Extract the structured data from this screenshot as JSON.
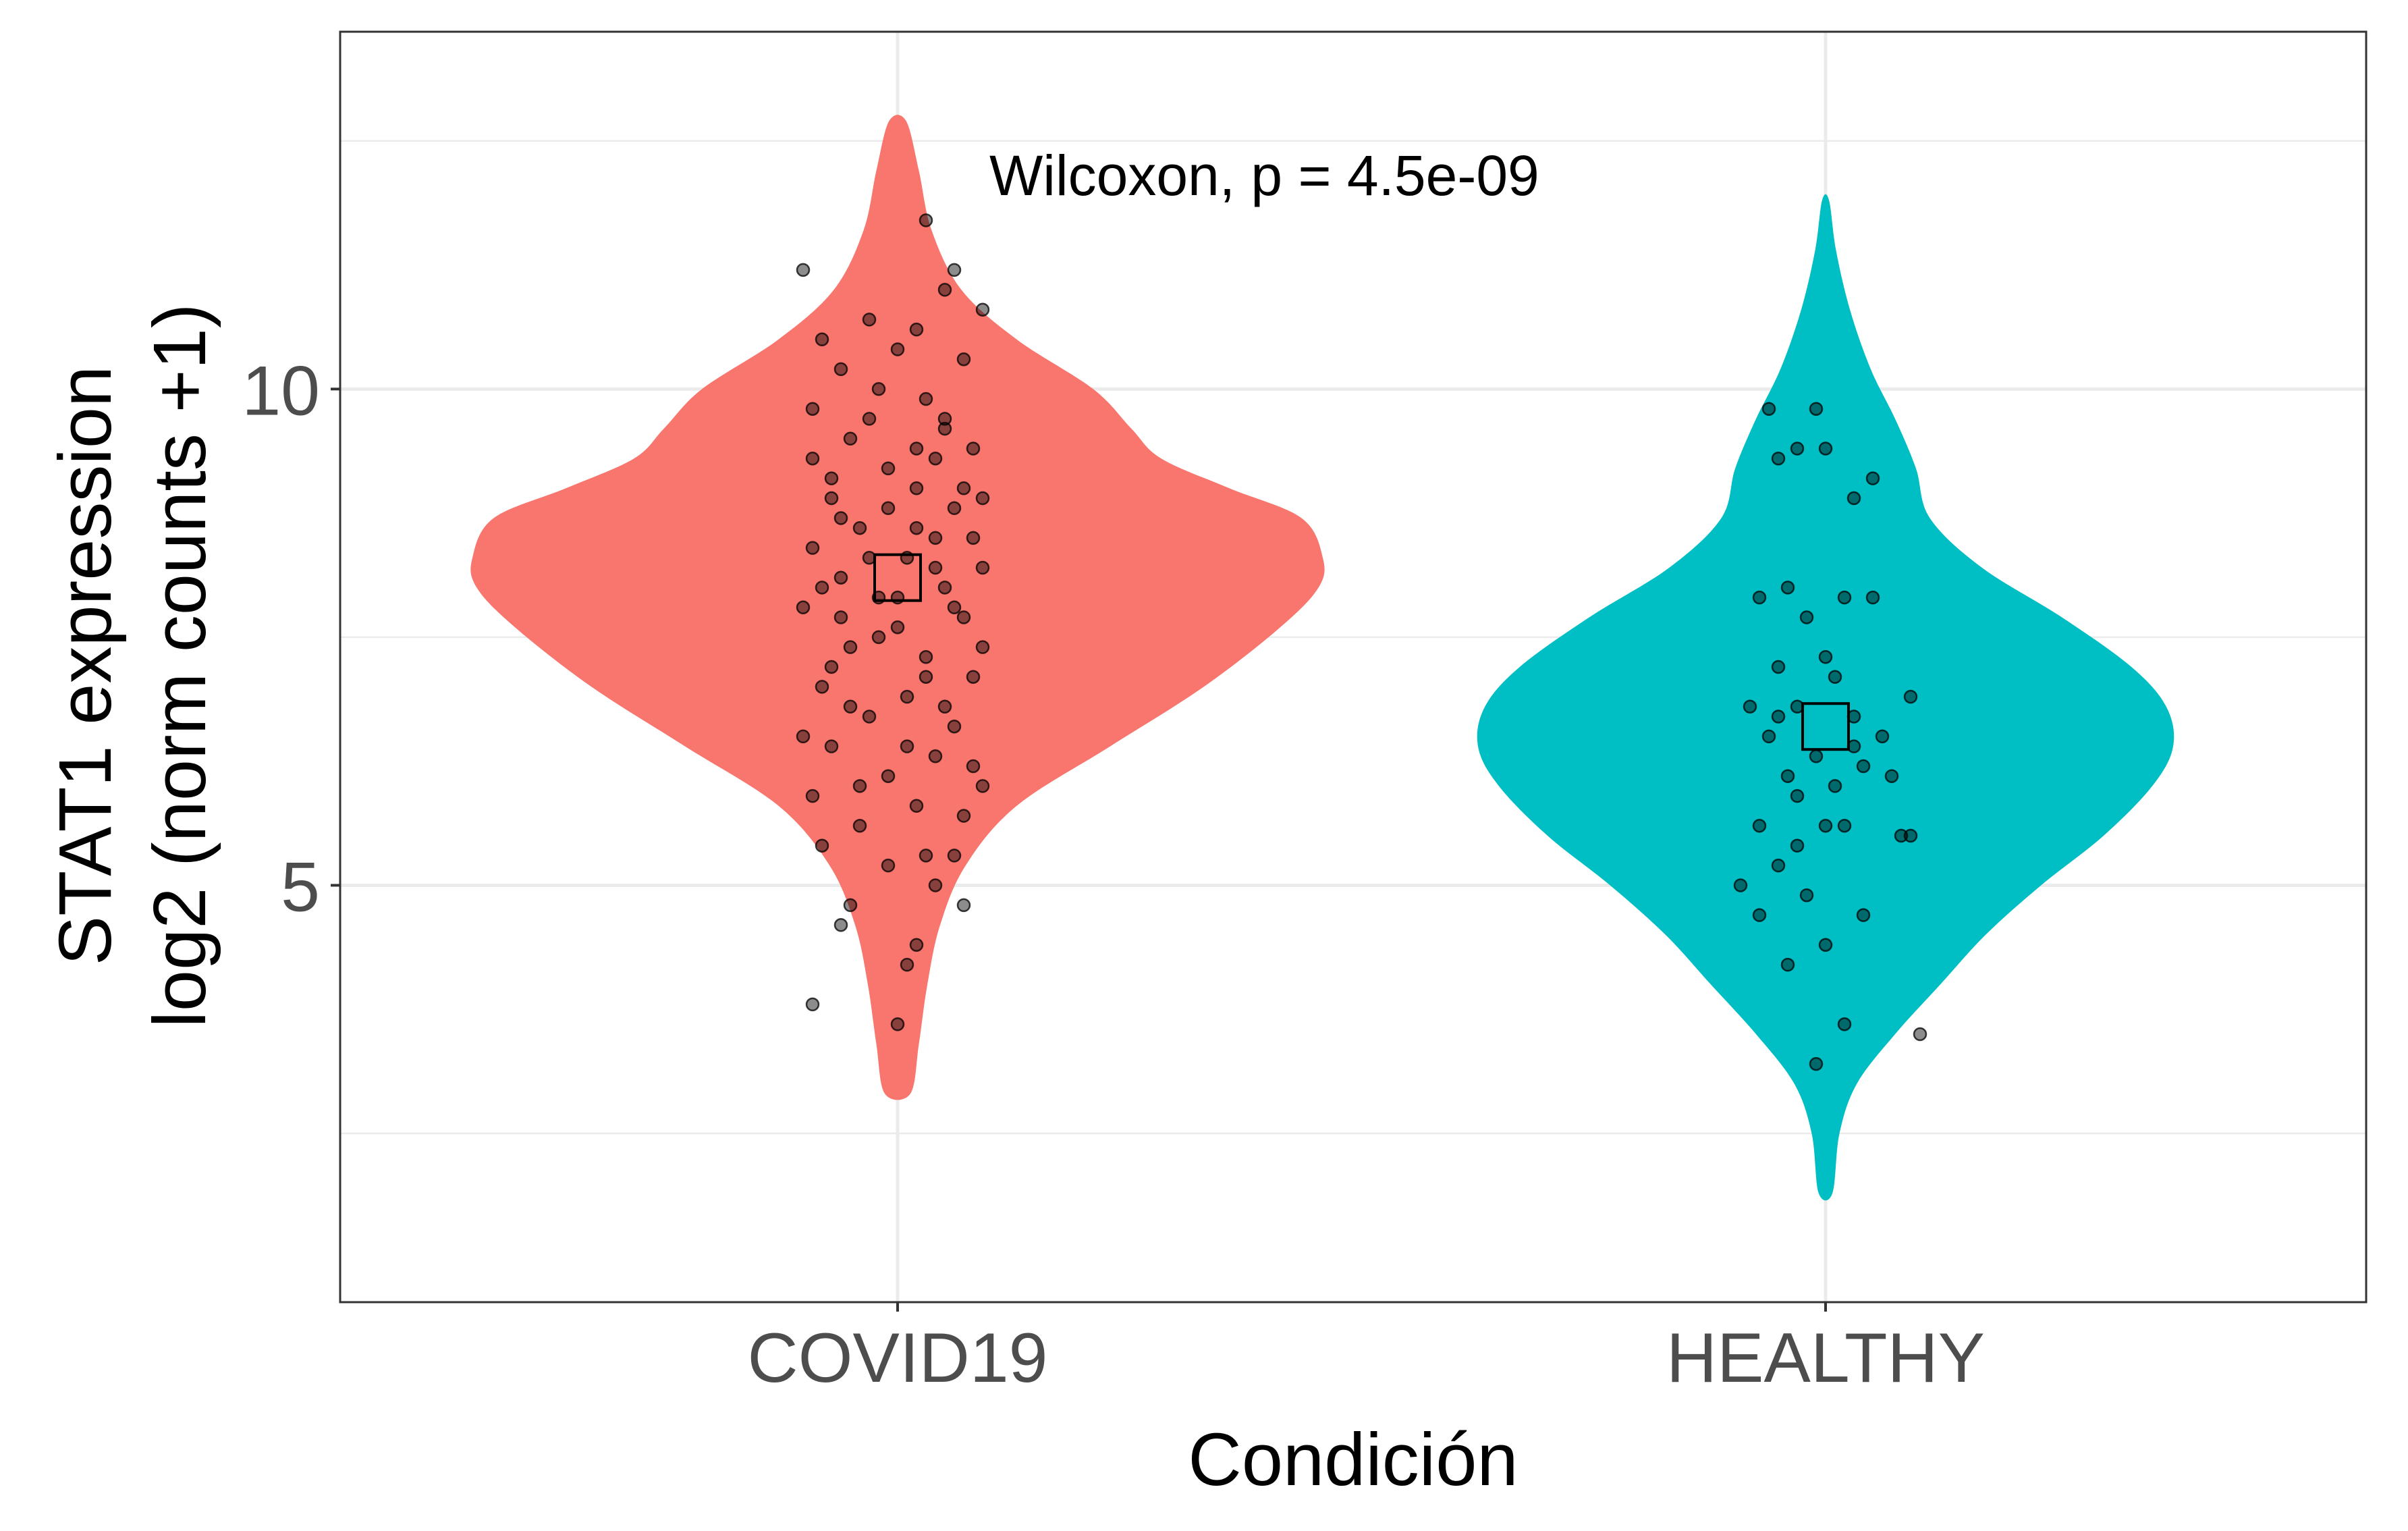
{
  "chart_data": {
    "type": "violin",
    "title": "",
    "xlabel": "Condición",
    "ylabel_lines": [
      "STAT1 expression",
      "log2 (norm counts +1)"
    ],
    "categories": [
      "COVID19",
      "HEALTHY"
    ],
    "ylim": [
      0.8,
      13.6
    ],
    "yticks": [
      5,
      10
    ],
    "ytick_labels": [
      "5",
      "10"
    ],
    "grid": true,
    "legend": "none",
    "annotation": "Wilcoxon, p = 4.5e-09",
    "series": [
      {
        "category": "COVID19",
        "color": "#F8766D",
        "mean": 8.1,
        "range": [
          2.9,
          12.7
        ],
        "profile": [
          {
            "y": 2.9,
            "d": 0.03
          },
          {
            "y": 3.4,
            "d": 0.05
          },
          {
            "y": 4.0,
            "d": 0.07
          },
          {
            "y": 4.6,
            "d": 0.1
          },
          {
            "y": 5.2,
            "d": 0.16
          },
          {
            "y": 5.8,
            "d": 0.28
          },
          {
            "y": 6.4,
            "d": 0.5
          },
          {
            "y": 7.0,
            "d": 0.72
          },
          {
            "y": 7.6,
            "d": 0.9
          },
          {
            "y": 8.0,
            "d": 0.99
          },
          {
            "y": 8.3,
            "d": 1.0
          },
          {
            "y": 8.7,
            "d": 0.95
          },
          {
            "y": 9.0,
            "d": 0.78
          },
          {
            "y": 9.3,
            "d": 0.62
          },
          {
            "y": 9.6,
            "d": 0.55
          },
          {
            "y": 10.0,
            "d": 0.46
          },
          {
            "y": 10.5,
            "d": 0.28
          },
          {
            "y": 11.0,
            "d": 0.15
          },
          {
            "y": 11.6,
            "d": 0.08
          },
          {
            "y": 12.2,
            "d": 0.05
          },
          {
            "y": 12.7,
            "d": 0.02
          }
        ],
        "points": [
          {
            "x": -0.09,
            "y": 3.8
          },
          {
            "x": -0.06,
            "y": 4.6
          },
          {
            "x": -0.05,
            "y": 4.8
          },
          {
            "x": 0.0,
            "y": 3.6
          },
          {
            "x": 0.01,
            "y": 4.2
          },
          {
            "x": 0.02,
            "y": 4.4
          },
          {
            "x": 0.07,
            "y": 4.8
          },
          {
            "x": -0.08,
            "y": 5.4
          },
          {
            "x": 0.03,
            "y": 5.3
          },
          {
            "x": 0.04,
            "y": 5.0
          },
          {
            "x": -0.01,
            "y": 5.2
          },
          {
            "x": 0.06,
            "y": 5.3
          },
          {
            "x": -0.1,
            "y": 11.2
          },
          {
            "x": 0.03,
            "y": 11.7
          },
          {
            "x": 0.06,
            "y": 11.2
          },
          {
            "x": -0.03,
            "y": 10.7
          },
          {
            "x": 0.09,
            "y": 10.8
          },
          {
            "x": 0.02,
            "y": 10.6
          },
          {
            "x": 0.05,
            "y": 11.0
          },
          {
            "x": -0.08,
            "y": 10.5
          },
          {
            "x": -0.06,
            "y": 10.2
          },
          {
            "x": 0.0,
            "y": 10.4
          },
          {
            "x": 0.07,
            "y": 10.3
          },
          {
            "x": -0.02,
            "y": 10.0
          },
          {
            "x": 0.03,
            "y": 9.9
          },
          {
            "x": -0.09,
            "y": 9.8
          },
          {
            "x": 0.05,
            "y": 9.7
          },
          {
            "x": -0.05,
            "y": 9.5
          },
          {
            "x": 0.08,
            "y": 9.4
          },
          {
            "x": -0.01,
            "y": 9.2
          },
          {
            "x": 0.02,
            "y": 9.0
          },
          {
            "x": -0.07,
            "y": 8.9
          },
          {
            "x": 0.06,
            "y": 8.8
          },
          {
            "x": -0.04,
            "y": 8.6
          },
          {
            "x": 0.04,
            "y": 8.5
          },
          {
            "x": -0.09,
            "y": 8.4
          },
          {
            "x": 0.01,
            "y": 8.3
          },
          {
            "x": 0.09,
            "y": 8.2
          },
          {
            "x": -0.06,
            "y": 8.1
          },
          {
            "x": 0.05,
            "y": 8.0
          },
          {
            "x": -0.02,
            "y": 7.9
          },
          {
            "x": -0.1,
            "y": 7.8
          },
          {
            "x": 0.07,
            "y": 7.7
          },
          {
            "x": 0.0,
            "y": 7.6
          },
          {
            "x": -0.05,
            "y": 7.4
          },
          {
            "x": 0.03,
            "y": 7.3
          },
          {
            "x": 0.08,
            "y": 7.1
          },
          {
            "x": -0.08,
            "y": 7.0
          },
          {
            "x": 0.01,
            "y": 6.9
          },
          {
            "x": -0.03,
            "y": 6.7
          },
          {
            "x": 0.06,
            "y": 6.6
          },
          {
            "x": -0.07,
            "y": 6.4
          },
          {
            "x": 0.04,
            "y": 6.3
          },
          {
            "x": -0.01,
            "y": 6.1
          },
          {
            "x": 0.09,
            "y": 6.0
          },
          {
            "x": -0.09,
            "y": 5.9
          },
          {
            "x": 0.02,
            "y": 5.8
          },
          {
            "x": -0.04,
            "y": 5.6
          },
          {
            "x": 0.07,
            "y": 5.7
          },
          {
            "x": -0.06,
            "y": 8.7
          },
          {
            "x": 0.02,
            "y": 8.6
          },
          {
            "x": 0.08,
            "y": 8.5
          },
          {
            "x": -0.03,
            "y": 8.3
          },
          {
            "x": 0.04,
            "y": 8.2
          },
          {
            "x": -0.08,
            "y": 8.0
          },
          {
            "x": 0.0,
            "y": 7.9
          },
          {
            "x": 0.06,
            "y": 7.8
          },
          {
            "x": -0.02,
            "y": 7.5
          },
          {
            "x": 0.09,
            "y": 7.4
          },
          {
            "x": -0.07,
            "y": 7.2
          },
          {
            "x": 0.03,
            "y": 7.1
          },
          {
            "x": -0.05,
            "y": 6.8
          },
          {
            "x": 0.05,
            "y": 6.8
          },
          {
            "x": -0.1,
            "y": 6.5
          },
          {
            "x": 0.01,
            "y": 6.4
          },
          {
            "x": 0.08,
            "y": 6.2
          },
          {
            "x": -0.04,
            "y": 6.0
          },
          {
            "x": 0.04,
            "y": 9.3
          },
          {
            "x": -0.07,
            "y": 9.1
          },
          {
            "x": 0.07,
            "y": 9.0
          },
          {
            "x": -0.01,
            "y": 8.8
          },
          {
            "x": 0.05,
            "y": 9.6
          },
          {
            "x": -0.09,
            "y": 9.3
          },
          {
            "x": 0.02,
            "y": 9.4
          },
          {
            "x": -0.03,
            "y": 9.7
          },
          {
            "x": 0.09,
            "y": 8.9
          },
          {
            "x": -0.06,
            "y": 7.7
          }
        ]
      },
      {
        "category": "HEALTHY",
        "color": "#00BFC4",
        "mean": 6.6,
        "range": [
          1.9,
          11.9
        ],
        "profile": [
          {
            "y": 1.9,
            "d": 0.02
          },
          {
            "y": 2.5,
            "d": 0.04
          },
          {
            "y": 3.0,
            "d": 0.09
          },
          {
            "y": 3.5,
            "d": 0.2
          },
          {
            "y": 4.0,
            "d": 0.33
          },
          {
            "y": 4.5,
            "d": 0.46
          },
          {
            "y": 5.0,
            "d": 0.62
          },
          {
            "y": 5.5,
            "d": 0.8
          },
          {
            "y": 6.0,
            "d": 0.94
          },
          {
            "y": 6.4,
            "d": 1.0
          },
          {
            "y": 6.8,
            "d": 0.98
          },
          {
            "y": 7.2,
            "d": 0.88
          },
          {
            "y": 7.7,
            "d": 0.68
          },
          {
            "y": 8.2,
            "d": 0.45
          },
          {
            "y": 8.7,
            "d": 0.3
          },
          {
            "y": 9.2,
            "d": 0.26
          },
          {
            "y": 9.7,
            "d": 0.2
          },
          {
            "y": 10.2,
            "d": 0.13
          },
          {
            "y": 10.8,
            "d": 0.07
          },
          {
            "y": 11.4,
            "d": 0.03
          },
          {
            "y": 11.9,
            "d": 0.01
          }
        ],
        "points": [
          {
            "x": -0.06,
            "y": 9.8
          },
          {
            "x": -0.01,
            "y": 9.8
          },
          {
            "x": -0.03,
            "y": 9.4
          },
          {
            "x": 0.0,
            "y": 9.4
          },
          {
            "x": -0.05,
            "y": 9.3
          },
          {
            "x": 0.05,
            "y": 9.1
          },
          {
            "x": 0.03,
            "y": 8.9
          },
          {
            "x": -0.07,
            "y": 7.9
          },
          {
            "x": -0.04,
            "y": 8.0
          },
          {
            "x": 0.02,
            "y": 7.9
          },
          {
            "x": 0.05,
            "y": 7.9
          },
          {
            "x": -0.02,
            "y": 7.7
          },
          {
            "x": 0.0,
            "y": 7.3
          },
          {
            "x": -0.05,
            "y": 7.2
          },
          {
            "x": 0.01,
            "y": 7.1
          },
          {
            "x": 0.09,
            "y": 6.9
          },
          {
            "x": -0.08,
            "y": 6.8
          },
          {
            "x": -0.03,
            "y": 6.8
          },
          {
            "x": 0.03,
            "y": 6.7
          },
          {
            "x": 0.06,
            "y": 6.5
          },
          {
            "x": -0.06,
            "y": 6.5
          },
          {
            "x": -0.01,
            "y": 6.3
          },
          {
            "x": 0.04,
            "y": 6.2
          },
          {
            "x": -0.04,
            "y": 6.1
          },
          {
            "x": 0.07,
            "y": 6.1
          },
          {
            "x": 0.01,
            "y": 6.0
          },
          {
            "x": -0.03,
            "y": 5.9
          },
          {
            "x": -0.07,
            "y": 5.6
          },
          {
            "x": 0.0,
            "y": 5.6
          },
          {
            "x": 0.02,
            "y": 5.6
          },
          {
            "x": 0.09,
            "y": 5.5
          },
          {
            "x": 0.08,
            "y": 5.5
          },
          {
            "x": -0.03,
            "y": 5.4
          },
          {
            "x": -0.05,
            "y": 5.2
          },
          {
            "x": -0.09,
            "y": 5.0
          },
          {
            "x": -0.02,
            "y": 4.9
          },
          {
            "x": -0.07,
            "y": 4.7
          },
          {
            "x": 0.04,
            "y": 4.7
          },
          {
            "x": 0.0,
            "y": 4.4
          },
          {
            "x": -0.04,
            "y": 4.2
          },
          {
            "x": 0.02,
            "y": 3.6
          },
          {
            "x": 0.1,
            "y": 3.5
          },
          {
            "x": -0.01,
            "y": 3.2
          },
          {
            "x": -0.05,
            "y": 6.7
          },
          {
            "x": 0.03,
            "y": 6.4
          }
        ]
      }
    ]
  }
}
